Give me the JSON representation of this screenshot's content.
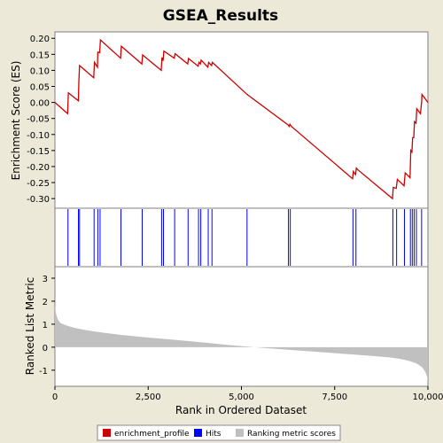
{
  "chart_data": {
    "type": "line",
    "title": "GSEA_Results",
    "xlabel": "Rank in Ordered Dataset",
    "es_panel": {
      "ylabel": "Enrichment Score (ES)",
      "ylim": [
        -0.33,
        0.22
      ],
      "yticks": [
        "0.20",
        "0.15",
        "0.10",
        "0.05",
        "0.00",
        "-0.05",
        "-0.10",
        "-0.15",
        "-0.20",
        "-0.25",
        "-0.30"
      ],
      "ytick_values": [
        0.2,
        0.15,
        0.1,
        0.05,
        0.0,
        -0.05,
        -0.1,
        -0.15,
        -0.2,
        -0.25,
        -0.3
      ],
      "series": [
        {
          "name": "enrichment_profile",
          "color": "#cc0000",
          "x": [
            0,
            340,
            360,
            630,
            640,
            660,
            1040,
            1060,
            1140,
            1150,
            1200,
            1220,
            1760,
            1780,
            2330,
            2350,
            2850,
            2870,
            2900,
            2920,
            3200,
            3220,
            3560,
            3580,
            3840,
            3860,
            3900,
            3920,
            4100,
            4120,
            4200,
            4220,
            5150,
            6250,
            6280,
            6300,
            6340,
            7980,
            8000,
            8060,
            8080,
            8120,
            9050,
            9070,
            9150,
            9180,
            9360,
            9390,
            9520,
            9540,
            9570,
            9590,
            9620,
            9640,
            9680,
            9700,
            9800,
            9830,
            9840,
            10000
          ],
          "y": [
            0.0,
            -0.035,
            0.03,
            0.005,
            0.06,
            0.115,
            0.077,
            0.125,
            0.11,
            0.157,
            0.155,
            0.195,
            0.138,
            0.175,
            0.12,
            0.148,
            0.1,
            0.14,
            0.13,
            0.16,
            0.138,
            0.152,
            0.12,
            0.137,
            0.113,
            0.125,
            0.12,
            0.132,
            0.11,
            0.125,
            0.115,
            0.125,
            0.025,
            -0.07,
            -0.075,
            -0.068,
            -0.075,
            -0.238,
            -0.215,
            -0.225,
            -0.205,
            -0.21,
            -0.3,
            -0.265,
            -0.268,
            -0.24,
            -0.26,
            -0.22,
            -0.235,
            -0.15,
            -0.155,
            -0.11,
            -0.11,
            -0.06,
            -0.065,
            -0.02,
            -0.035,
            0.0,
            0.025,
            0.0
          ]
        }
      ]
    },
    "hits": {
      "name": "Hits",
      "color": "#0000ff",
      "positions": [
        350,
        630,
        660,
        1050,
        1150,
        1210,
        1770,
        2340,
        2860,
        2910,
        3210,
        3570,
        3850,
        3910,
        4110,
        4210,
        5150,
        6260,
        6310,
        7990,
        8070,
        9060,
        9160,
        9370,
        9530,
        9580,
        9630,
        9690,
        9830
      ]
    },
    "ranked_metric_panel": {
      "ylabel": "Ranked List Metric",
      "ylim": [
        -1.7,
        3.5
      ],
      "yticks": [
        "3",
        "2",
        "1",
        "0",
        "-1"
      ],
      "ytick_values": [
        3,
        2,
        1,
        0,
        -1
      ],
      "series": [
        {
          "name": "Ranking metric scores",
          "color": "#c0c0c0",
          "x": [
            0,
            30,
            80,
            150,
            300,
            500,
            800,
            1200,
            1800,
            2500,
            3200,
            4000,
            4500,
            5000,
            5500,
            6000,
            6500,
            7000,
            7500,
            8000,
            8500,
            9000,
            9300,
            9500,
            9650,
            9750,
            9850,
            9900,
            9950,
            9990,
            10000
          ],
          "y": [
            1.8,
            1.45,
            1.2,
            1.05,
            0.95,
            0.85,
            0.75,
            0.65,
            0.53,
            0.42,
            0.32,
            0.2,
            0.12,
            0.05,
            -0.02,
            -0.08,
            -0.14,
            -0.2,
            -0.26,
            -0.32,
            -0.38,
            -0.45,
            -0.52,
            -0.6,
            -0.68,
            -0.76,
            -0.88,
            -1.0,
            -1.15,
            -1.35,
            -1.55
          ]
        }
      ]
    },
    "xlim": [
      0,
      10000
    ],
    "xticks": [
      "0",
      "2,500",
      "5,000",
      "7,500",
      "10,000"
    ],
    "xtick_values": [
      0,
      2500,
      5000,
      7500,
      10000
    ],
    "legend": {
      "placement": "bottom",
      "entries": [
        {
          "label": "enrichment_profile",
          "color": "#cc0000"
        },
        {
          "label": "Hits",
          "color": "#0000ff"
        },
        {
          "label": "Ranking metric scores",
          "color": "#c0c0c0"
        }
      ]
    }
  }
}
